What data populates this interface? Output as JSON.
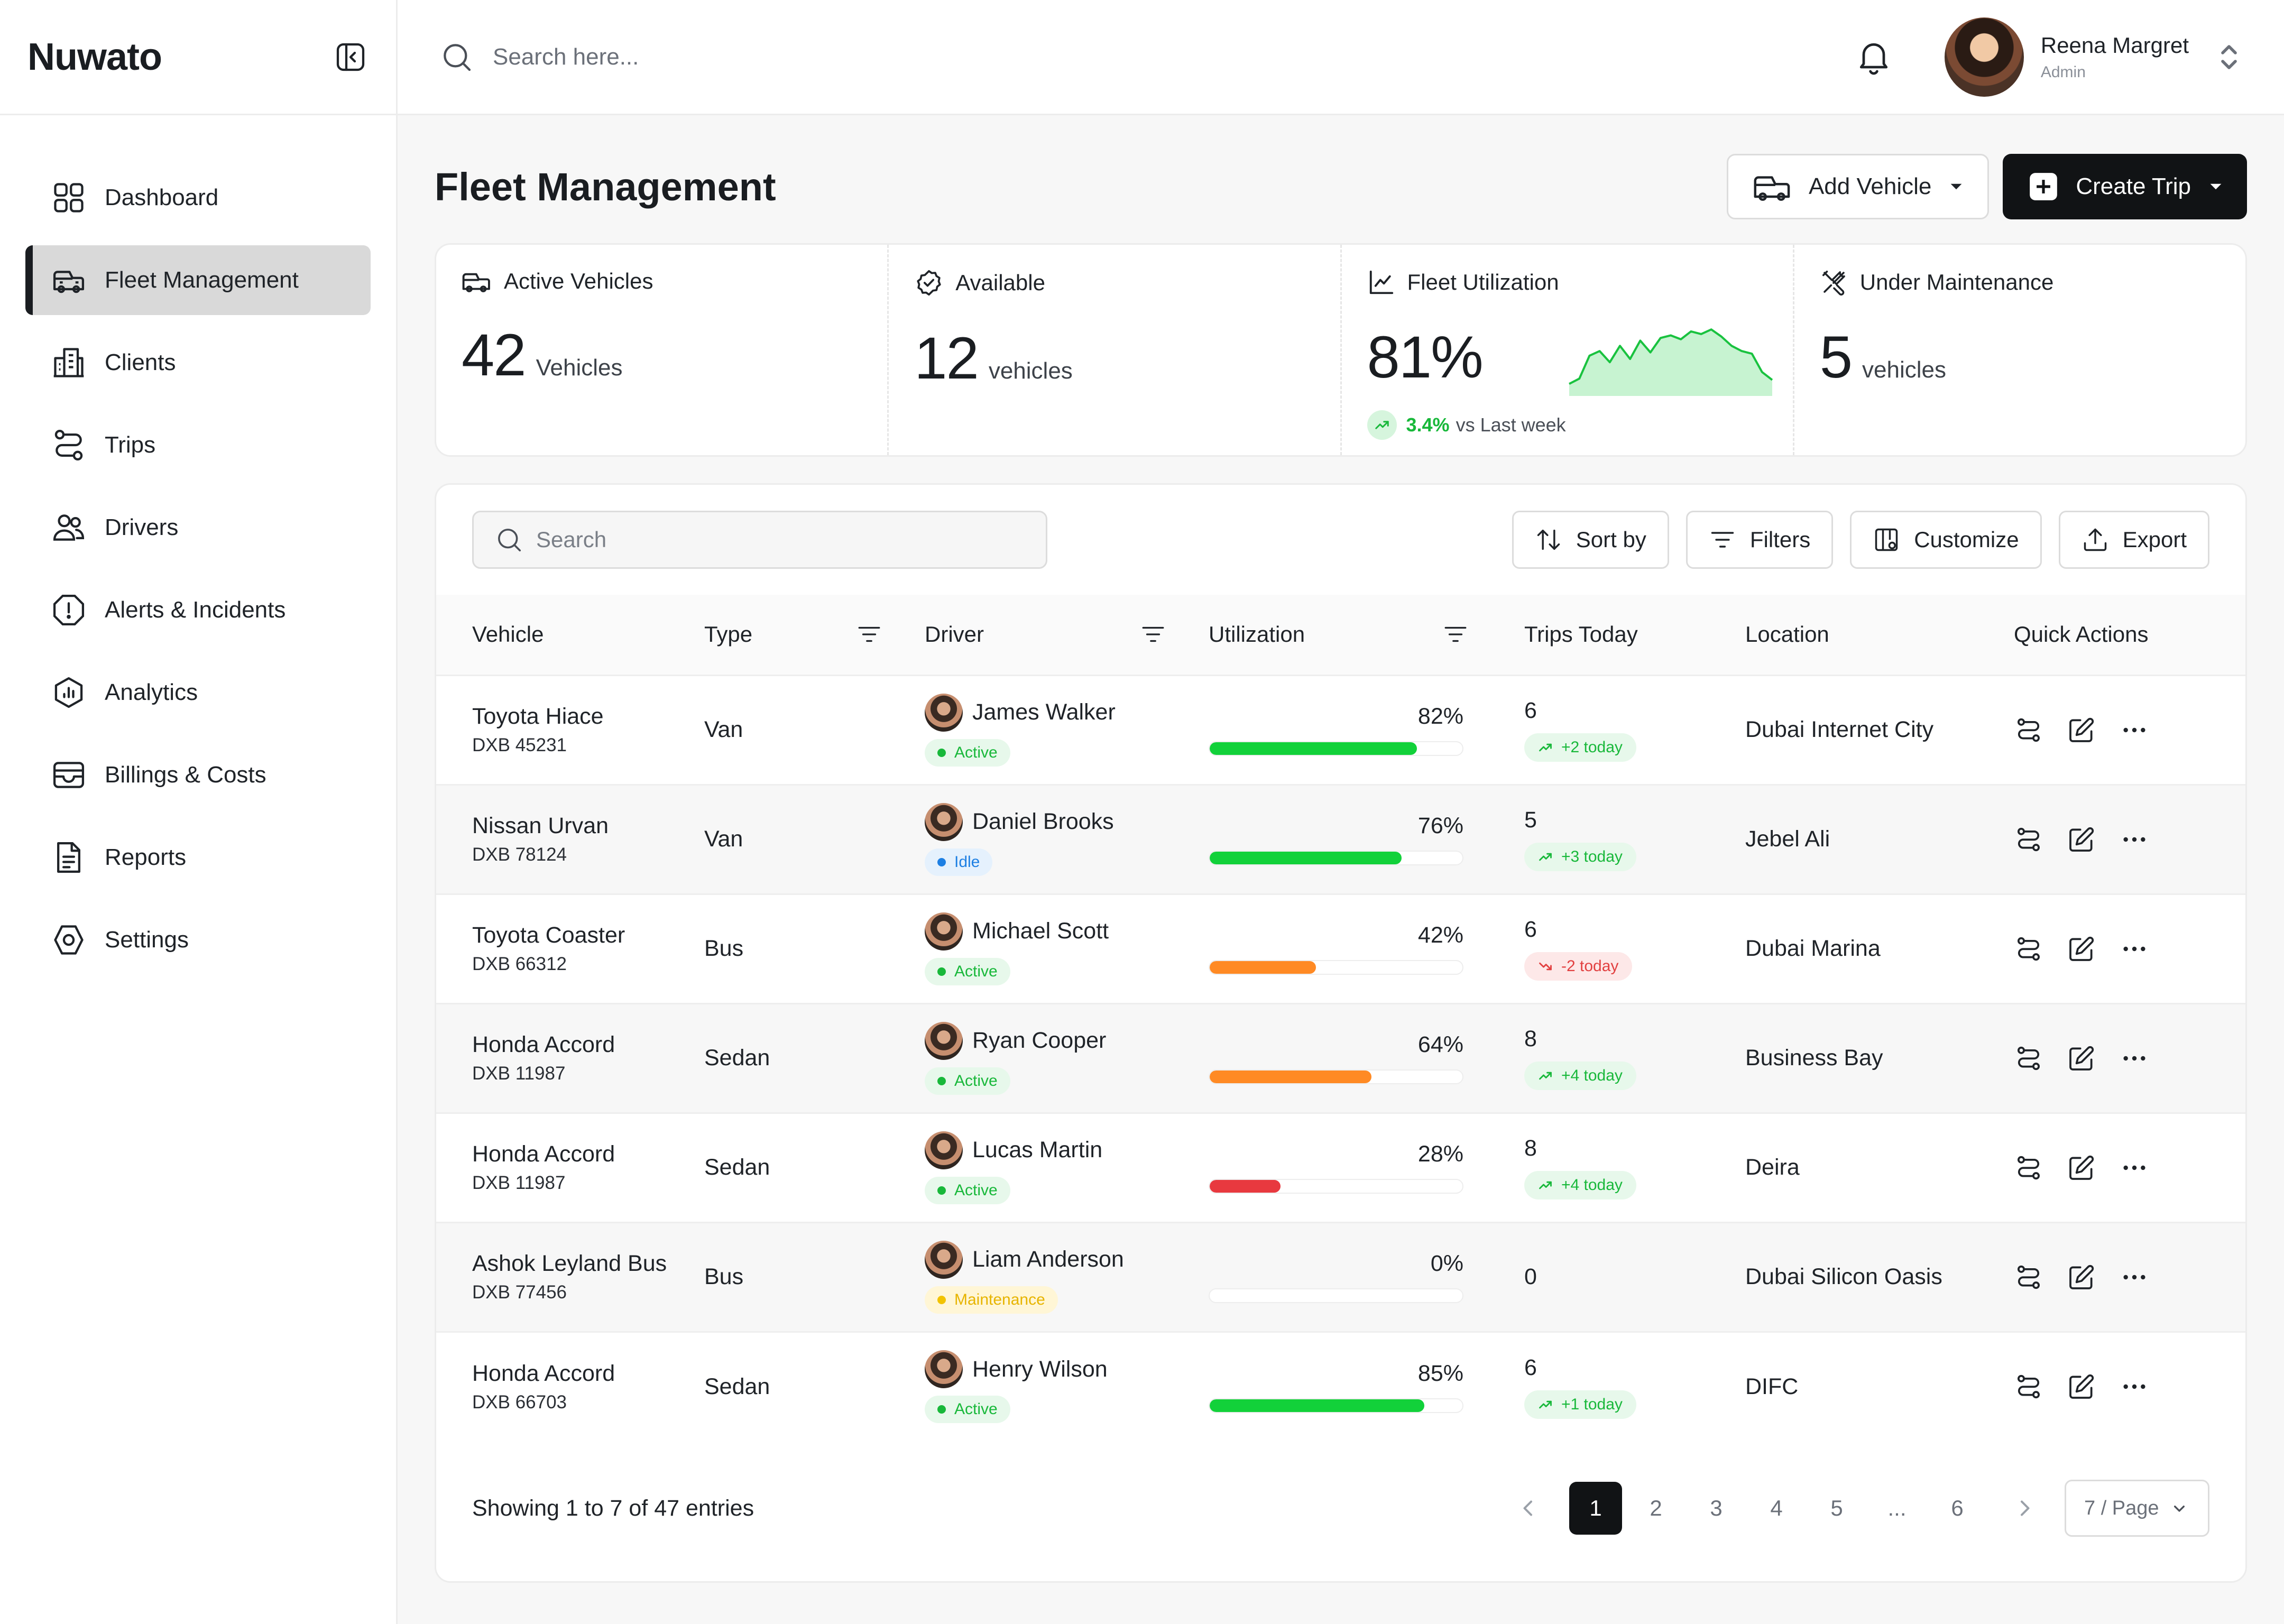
{
  "app": {
    "brand": "Nuwato"
  },
  "nav": [
    {
      "label": "Dashboard",
      "icon": "grid-icon"
    },
    {
      "label": "Fleet Management",
      "icon": "car-icon",
      "active": true
    },
    {
      "label": "Clients",
      "icon": "building-icon"
    },
    {
      "label": "Trips",
      "icon": "route-icon"
    },
    {
      "label": "Drivers",
      "icon": "users-icon"
    },
    {
      "label": "Alerts & Incidents",
      "icon": "alert-icon"
    },
    {
      "label": "Analytics",
      "icon": "analytics-icon"
    },
    {
      "label": "Billings & Costs",
      "icon": "wallet-icon"
    },
    {
      "label": "Reports",
      "icon": "document-icon"
    },
    {
      "label": "Settings",
      "icon": "settings-icon"
    }
  ],
  "topbar": {
    "search_placeholder": "Search here...",
    "user": {
      "name": "Reena Margret",
      "role": "Admin"
    }
  },
  "page": {
    "title": "Fleet Management",
    "add_vehicle": "Add Vehicle",
    "create_trip": "Create Trip"
  },
  "stats": {
    "active": {
      "label": "Active Vehicles",
      "value": "42",
      "unit": "Vehicles"
    },
    "available": {
      "label": "Available",
      "value": "12",
      "unit": "vehicles"
    },
    "utilization": {
      "label": "Fleet Utilization",
      "value": "81%",
      "delta": "3.4%",
      "delta_text": "vs Last week",
      "sparkline": [
        0.12,
        0.2,
        0.55,
        0.62,
        0.45,
        0.7,
        0.5,
        0.78,
        0.6,
        0.82,
        0.86,
        0.8,
        0.92,
        0.88,
        0.95,
        0.84,
        0.7,
        0.62,
        0.58,
        0.3,
        0.18
      ],
      "colors": {
        "line": "#19c23f",
        "fill": "#b9f0c5"
      }
    },
    "maintenance": {
      "label": "Under Maintenance",
      "value": "5",
      "unit": "vehicles"
    }
  },
  "table": {
    "search_placeholder": "Search",
    "tools": {
      "sort": "Sort by",
      "filters": "Filters",
      "customize": "Customize",
      "export": "Export"
    },
    "headers": {
      "vehicle": "Vehicle",
      "type": "Type",
      "driver": "Driver",
      "utilization": "Utilization",
      "trips": "Trips Today",
      "location": "Location",
      "actions": "Quick Actions"
    },
    "rows": [
      {
        "vehicle": "Toyota Hiace",
        "plate": "DXB 45231",
        "type": "Van",
        "driver": "James Walker",
        "status": "Active",
        "status_kind": "active",
        "util_label": "82%",
        "util": 0.82,
        "bar_color": "#12d13a",
        "trips": "6",
        "trend": "+2 today",
        "trend_dir": "up",
        "location": "Dubai Internet City"
      },
      {
        "vehicle": "Nissan Urvan",
        "plate": "DXB 78124",
        "type": "Van",
        "driver": "Daniel Brooks",
        "status": "Idle",
        "status_kind": "idle",
        "util_label": "76%",
        "util": 0.76,
        "bar_color": "#12d13a",
        "trips": "5",
        "trend": "+3 today",
        "trend_dir": "up",
        "location": "Jebel Ali"
      },
      {
        "vehicle": "Toyota Coaster",
        "plate": "DXB 66312",
        "type": "Bus",
        "driver": "Michael Scott",
        "status": "Active",
        "status_kind": "active",
        "util_label": "42%",
        "util": 0.42,
        "bar_color": "#ff8a24",
        "trips": "6",
        "trend": "-2 today",
        "trend_dir": "down",
        "location": "Dubai Marina"
      },
      {
        "vehicle": "Honda Accord",
        "plate": "DXB 11987",
        "type": "Sedan",
        "driver": "Ryan Cooper",
        "status": "Active",
        "status_kind": "active",
        "util_label": "64%",
        "util": 0.64,
        "bar_color": "#ff8a24",
        "trips": "8",
        "trend": "+4 today",
        "trend_dir": "up",
        "location": "Business Bay"
      },
      {
        "vehicle": "Honda Accord",
        "plate": "DXB 11987",
        "type": "Sedan",
        "driver": "Lucas Martin",
        "status": "Active",
        "status_kind": "active",
        "util_label": "28%",
        "util": 0.28,
        "bar_color": "#e8393f",
        "trips": "8",
        "trend": "+4 today",
        "trend_dir": "up",
        "location": "Deira"
      },
      {
        "vehicle": "Ashok Leyland Bus",
        "plate": "DXB 77456",
        "type": "Bus",
        "driver": "Liam Anderson",
        "status": "Maintenance",
        "status_kind": "maintenance",
        "util_label": "0%",
        "util": 0,
        "bar_color": "#12d13a",
        "trips": "0",
        "trend": "",
        "trend_dir": "",
        "location": "Dubai Silicon Oasis"
      },
      {
        "vehicle": "Honda Accord",
        "plate": "DXB 66703",
        "type": "Sedan",
        "driver": "Henry Wilson",
        "status": "Active",
        "status_kind": "active",
        "util_label": "85%",
        "util": 0.85,
        "bar_color": "#12d13a",
        "trips": "6",
        "trend": "+1 today",
        "trend_dir": "up",
        "location": "DIFC"
      }
    ]
  },
  "pagination": {
    "showing": "Showing 1 to 7 of 47 entries",
    "pages": [
      "1",
      "2",
      "3",
      "4",
      "5",
      "...",
      "6"
    ],
    "current": "1",
    "per_page": "7 / Page"
  }
}
